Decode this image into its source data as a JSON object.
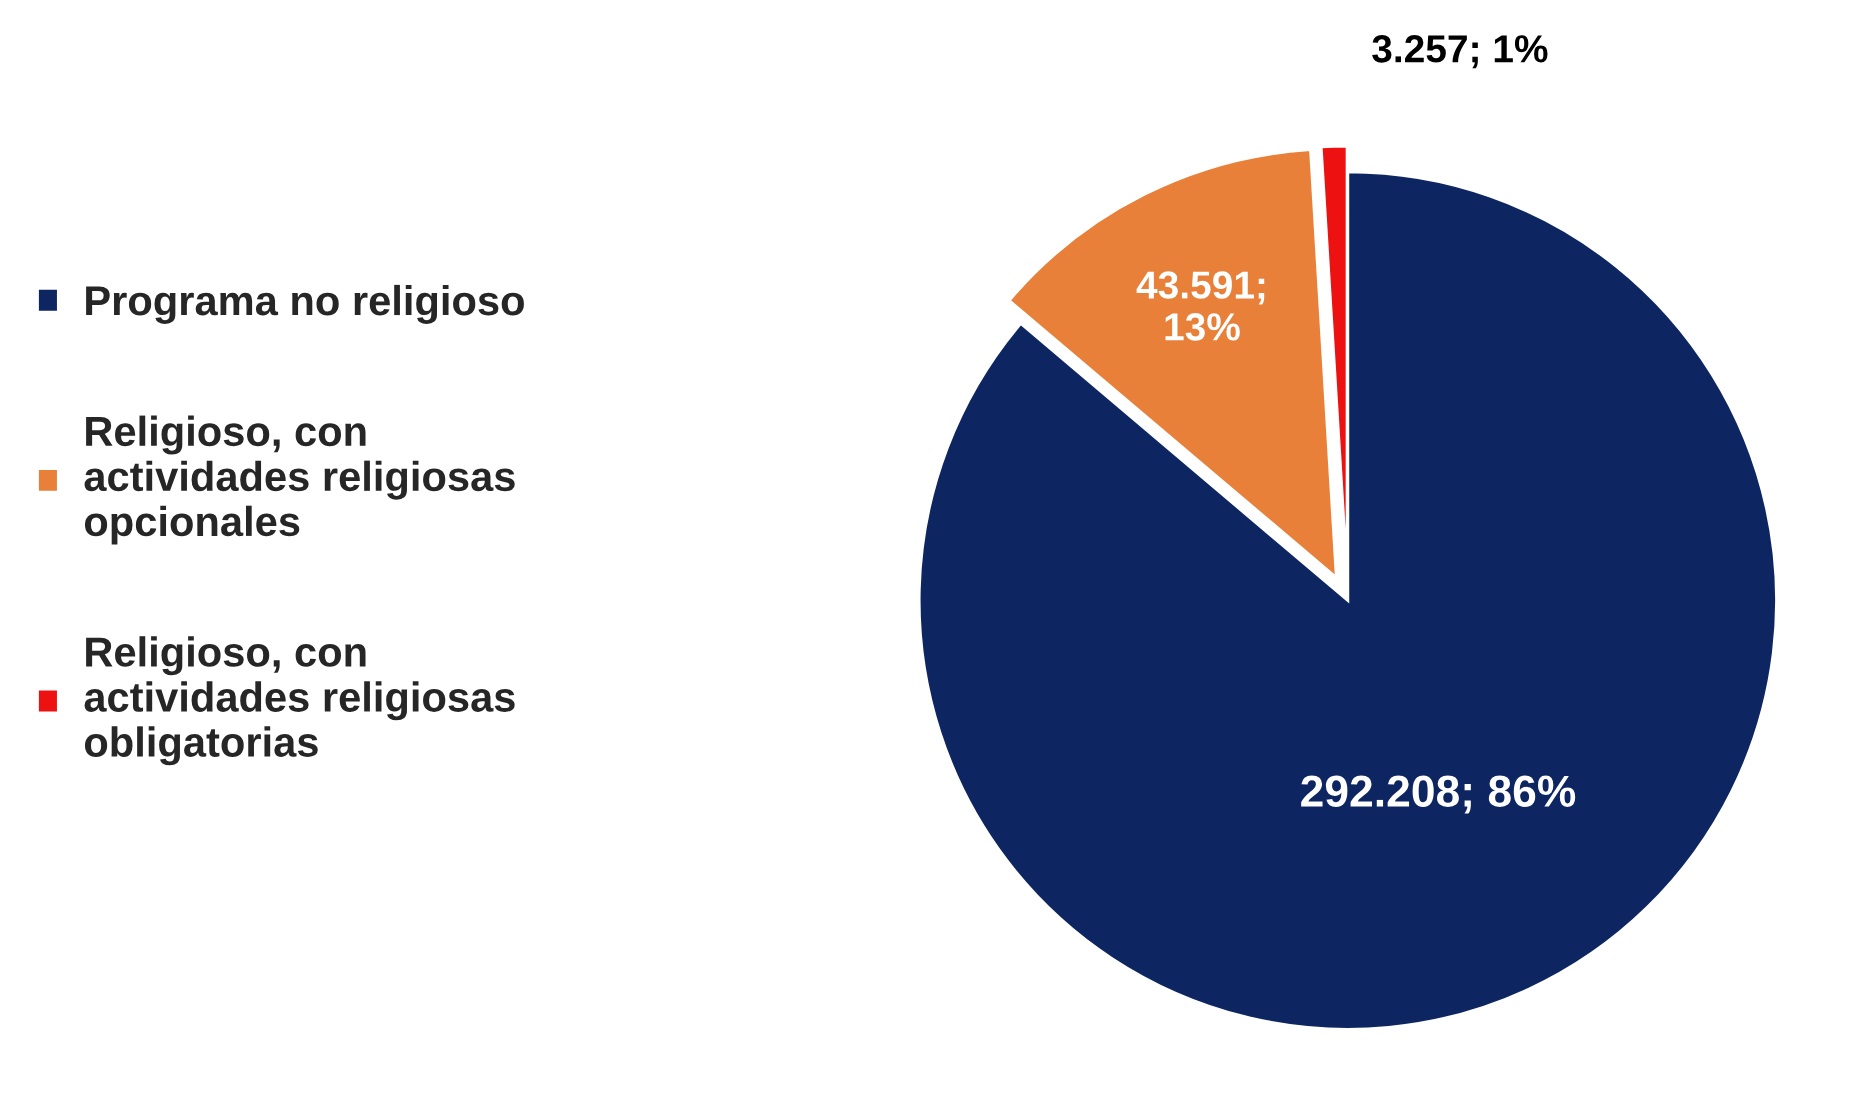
{
  "chart_data": {
    "type": "pie",
    "categories": [
      "Programa no religioso",
      "Religioso, con actividades religiosas opcionales",
      "Religioso, con actividades religiosas obligatorias"
    ],
    "values": [
      292208,
      43591,
      3257
    ],
    "colors": [
      "#0d2560",
      "#e8803a",
      "#ee1111"
    ],
    "value_labels": [
      "292.208; 86%",
      "43.591;\n13%",
      "3.257; 1%"
    ],
    "legend": "left"
  }
}
